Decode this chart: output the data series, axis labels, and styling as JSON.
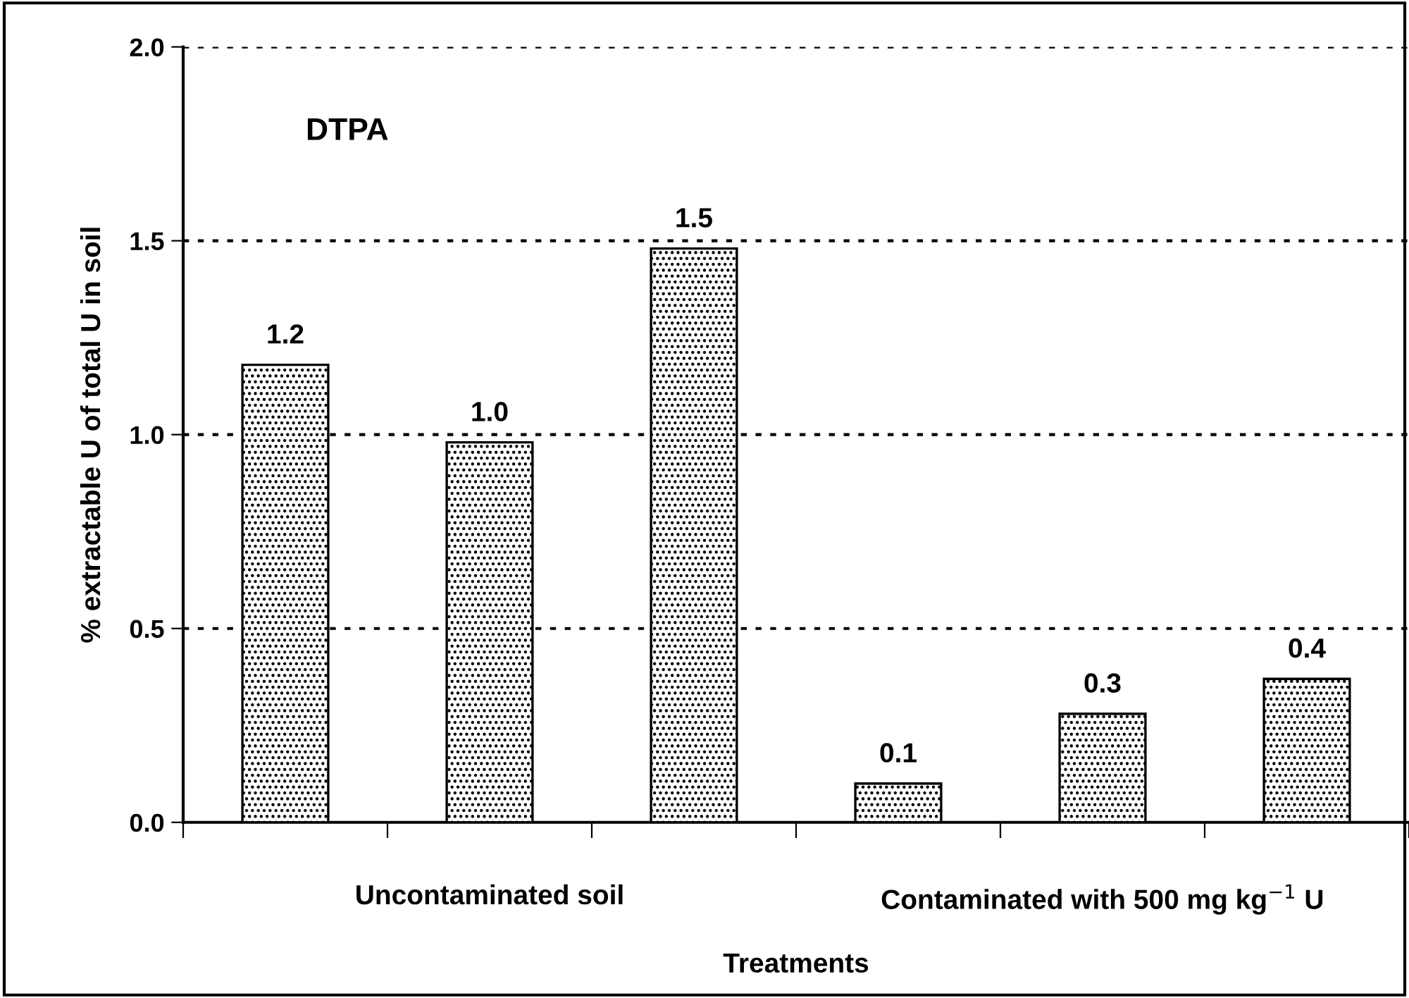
{
  "chart_data": {
    "type": "bar",
    "title": "DTPA",
    "xlabel": "Treatments",
    "ylabel": "% extractable U of total U in soil",
    "categories": [
      null,
      null,
      null,
      null,
      null,
      null
    ],
    "values": [
      1.18,
      0.98,
      1.48,
      0.1,
      0.28,
      0.37
    ],
    "value_labels": [
      "1.2",
      "1.0",
      "1.5",
      "0.1",
      "0.3",
      "0.4"
    ],
    "color": "#000000",
    "ylim": [
      0,
      2
    ],
    "yticks": [
      {
        "value": 0,
        "label": "0.0"
      },
      {
        "value": 0.5,
        "label": "0.5"
      },
      {
        "value": 1,
        "label": "1.0"
      },
      {
        "value": 1.5,
        "label": "1.5"
      },
      {
        "value": 2,
        "label": "2.0"
      }
    ],
    "grid": "y",
    "annotations": [
      "Uncontaminated soil",
      "Contaminated with 500 mg kg$^{−1}$ U"
    ]
  }
}
